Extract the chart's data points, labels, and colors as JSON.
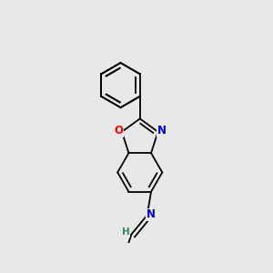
{
  "background_color": "#e8e8e8",
  "bond_color": "#000000",
  "atom_colors": {
    "O": "#ff0000",
    "N_imine": "#0000cd",
    "N_ring": "#0000cd",
    "Cl": "#228b22",
    "H": "#2e8b57",
    "C": "#000000"
  },
  "bond_width": 1.3,
  "font_size": 8.5,
  "lw": 1.3
}
